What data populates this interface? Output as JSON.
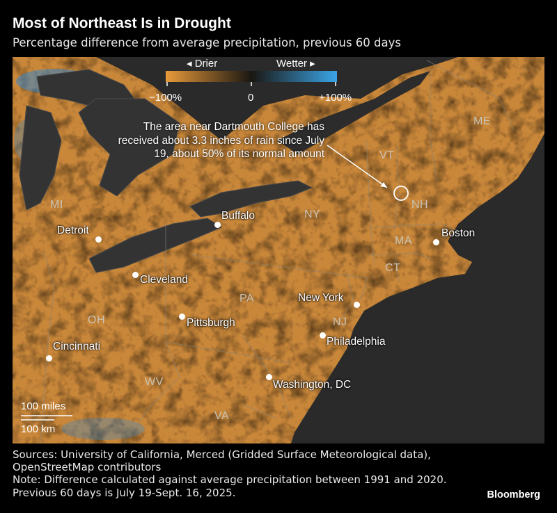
{
  "header": {
    "title": "Most of Northeast Is in Drought",
    "subtitle": "Percentage difference from average precipitation, previous 60 days"
  },
  "legend": {
    "drier_label": "◂ Drier",
    "wetter_label": "Wetter ▸",
    "min_label": "−100%",
    "mid_label": "0",
    "max_label": "+100%",
    "colors": {
      "drier": "#e89a3a",
      "neutral": "#1a1712",
      "wetter": "#3aa5e8"
    }
  },
  "states": [
    "ME",
    "VT",
    "NH",
    "NY",
    "MA",
    "CT",
    "MI",
    "PA",
    "NJ",
    "OH",
    "WV",
    "VA"
  ],
  "cities": [
    "Buffalo",
    "Detroit",
    "Boston",
    "Cleveland",
    "New York",
    "Pittsburgh",
    "Philadelphia",
    "Cincinnati",
    "Washington, DC"
  ],
  "annotation": "The area near Dartmouth College has received about 3.3 inches of rain since July 19, about 50% of its normal amount",
  "scale": {
    "miles": "100 miles",
    "km": "100 km"
  },
  "footer": {
    "sources": "Sources: University of California, Merced (Gridded Surface Meteorological data), OpenStreetMap contributors",
    "note": "Note: Difference calculated against average precipitation between 1991 and 2020. Previous 60 days is July 19-Sept. 16, 2025."
  },
  "brand": "Bloomberg"
}
